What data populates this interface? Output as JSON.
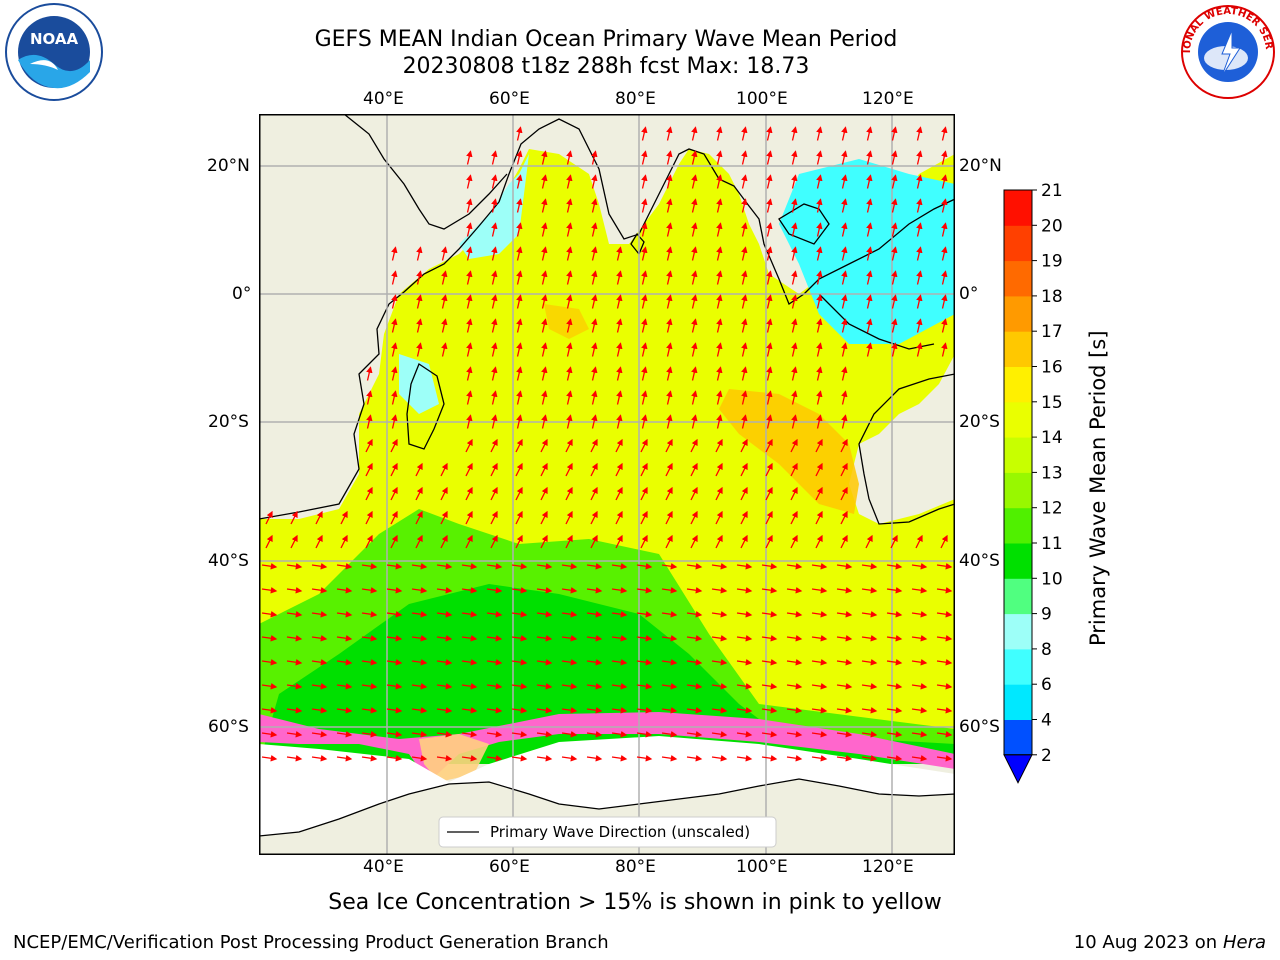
{
  "title": {
    "line1": "GEFS MEAN Indian Ocean Primary Wave Mean Period",
    "line2": "20230808 t18z 288h fcst   Max: 18.73"
  },
  "axes": {
    "lon_ticks": [
      "40°E",
      "60°E",
      "80°E",
      "100°E",
      "120°E"
    ],
    "lat_ticks": [
      "20°N",
      "0°",
      "20°S",
      "40°S",
      "60°S"
    ]
  },
  "legend": {
    "label": "Primary Wave Direction (unscaled)"
  },
  "colorbar": {
    "label": "Primary Wave Mean Period [s]",
    "ticks": [
      "2",
      "4",
      "6",
      "8",
      "9",
      "10",
      "11",
      "12",
      "13",
      "14",
      "15",
      "16",
      "17",
      "18",
      "19",
      "20",
      "21"
    ],
    "colors": [
      "#0050ff",
      "#00e8ff",
      "#40ffff",
      "#9dfff8",
      "#50ff80",
      "#00e000",
      "#50f000",
      "#98f800",
      "#c8ff00",
      "#eaff00",
      "#fff000",
      "#ffc800",
      "#ff9a00",
      "#ff6a00",
      "#ff4000",
      "#ff1000"
    ],
    "underflow_color": "#0000ff"
  },
  "caption": "Sea Ice Concentration > 15% is shown in pink to yellow",
  "footer": {
    "credit": "NCEP/EMC/Verification Post Processing Product Generation Branch",
    "date_prefix": "10 Aug 2023 on",
    "date_machine": "Hera"
  },
  "logos": {
    "left": "NOAA",
    "right": "NATIONAL WEATHER SERVICE"
  },
  "colors": {
    "land": "#efefe0",
    "arrow": "#ff0000",
    "grid": "#b0b0b0"
  }
}
